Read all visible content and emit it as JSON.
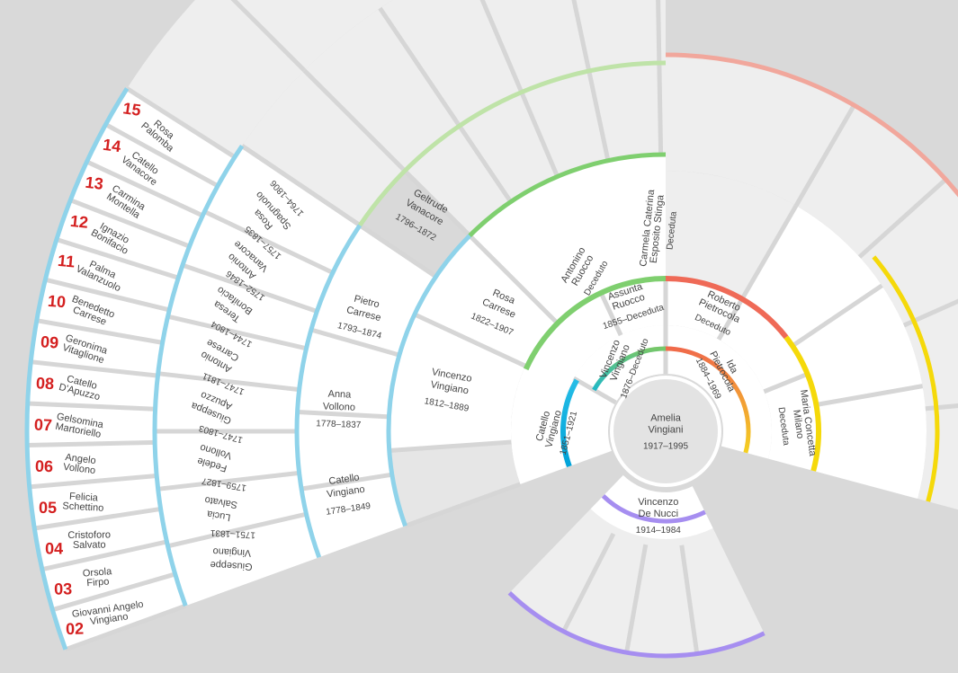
{
  "root": {
    "name": [
      "Amelia",
      "Vingiani"
    ],
    "dates": "1917–1995"
  },
  "spouse": {
    "name": [
      "Vincenzo",
      "De Nucci"
    ],
    "dates": "1914–1984"
  },
  "father": {
    "name": [
      "Catello",
      "Vingiano"
    ],
    "dates": "1851–1921"
  },
  "father_spouse": {
    "name": [
      "Vincenzo",
      "Vingiano"
    ],
    "dates": "1876–Deceduto"
  },
  "mother": {
    "name": [
      "Ida",
      "Pietrocola"
    ],
    "dates": "1884–1969"
  },
  "f_parents": [
    {
      "name": [
        "Assunta",
        "Ruocco"
      ],
      "dates": "1855–Deceduta"
    },
    {
      "name": [
        "Vincenzo",
        "Vingiano"
      ],
      "dates": "1812–1889"
    }
  ],
  "f_grandparents": [
    {
      "name": [
        "Carmela Caterina",
        "Esposito Stinga"
      ],
      "dates": "Deceduta"
    },
    {
      "name": [
        "Antonino",
        "Ruocco"
      ],
      "dates": "Deceduto"
    },
    {
      "name": [
        "Rosa",
        "Carrese"
      ],
      "dates": "1822–1907"
    }
  ],
  "gen4": [
    {
      "name": [
        "Geltrude",
        "Vanacore"
      ],
      "dates": "1796–1872"
    },
    {
      "name": [
        "Pietro",
        "Carrese"
      ],
      "dates": "1793–1874"
    },
    {
      "name": [
        "Anna",
        "Vollono"
      ],
      "dates": "1778–1837"
    },
    {
      "name": [
        "Catello",
        "Vingiano"
      ],
      "dates": "1778–1849"
    }
  ],
  "gen5": [
    {
      "name": [
        "Rosa",
        "Spagnuolo"
      ],
      "dates": "1764–1806"
    },
    {
      "name": [
        "Antonio",
        "Vanacore"
      ],
      "dates": "1757–1835"
    },
    {
      "name": [
        "Teresa",
        "Bonifacio"
      ],
      "dates": "1752–1846"
    },
    {
      "name": [
        "Antonio",
        "Carrese"
      ],
      "dates": "1744–1804"
    },
    {
      "name": [
        "Giuseppa",
        "Apuzzo"
      ],
      "dates": "1747–1811"
    },
    {
      "name": [
        "Fedele",
        "Vollono"
      ],
      "dates": "1747–1803"
    },
    {
      "name": [
        "Lucia",
        "Salvato"
      ],
      "dates": "1759–1827"
    },
    {
      "name": [
        "Giuseppe",
        "Vingiano"
      ],
      "dates": "1751–1831"
    }
  ],
  "gen6": [
    {
      "index": "15",
      "name": [
        "Rosa",
        "Palomba"
      ]
    },
    {
      "index": "14",
      "name": [
        "Catello",
        "Vanacore"
      ]
    },
    {
      "index": "13",
      "name": [
        "Carmina",
        "Montella"
      ]
    },
    {
      "index": "12",
      "name": [
        "Ignazio",
        "Bonifacio"
      ]
    },
    {
      "index": "11",
      "name": [
        "Palma",
        "Valanzuolo"
      ]
    },
    {
      "index": "10",
      "name": [
        "Benedetto",
        "Carrese"
      ]
    },
    {
      "index": "09",
      "name": [
        "Geronima",
        "Vitaglione"
      ]
    },
    {
      "index": "08",
      "name": [
        "Catello",
        "D'Apuzzo"
      ]
    },
    {
      "index": "07",
      "name": [
        "Gelsomina",
        "Martoriello"
      ]
    },
    {
      "index": "06",
      "name": [
        "Angelo",
        "Vollono"
      ]
    },
    {
      "index": "05",
      "name": [
        "Felicia",
        "Schettino"
      ]
    },
    {
      "index": "04",
      "name": [
        "Cristoforo",
        "Salvato"
      ]
    },
    {
      "index": "03",
      "name": [
        "Orsola",
        "Firpo"
      ]
    },
    {
      "index": "02",
      "name": [
        "Giovanni Angelo",
        "Vingiano"
      ]
    }
  ],
  "m_parents": [
    {
      "name": [
        "Roberto",
        "Pietrocola"
      ],
      "dates": "Deceduto"
    },
    {
      "name": [
        "Maria Concetta",
        "Milano"
      ],
      "dates": "Deceduta"
    }
  ],
  "colors": {
    "background": "#d9d9d9",
    "paternal_blue": "#8fd3ea",
    "green": "#7fcf6f",
    "light_green": "#bfe3a8",
    "red": "#ef6a57",
    "salmon": "#f1a79c",
    "yellow": "#f5d90a",
    "purple": "#a68ef0",
    "index_red": "#d42020"
  }
}
